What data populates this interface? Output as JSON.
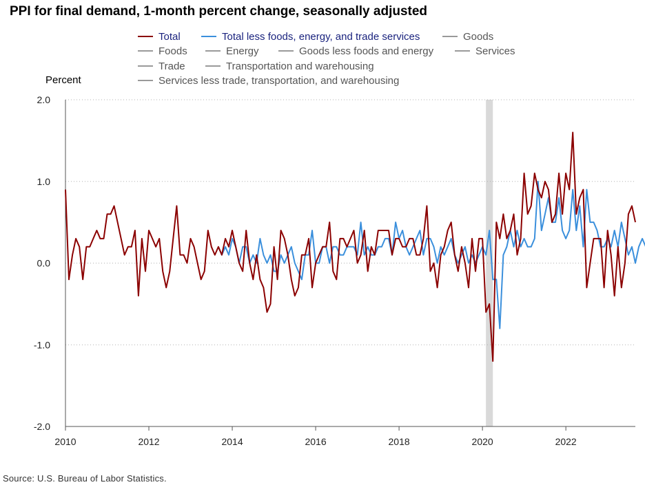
{
  "title": "PPI for final demand, 1-month percent change, seasonally adjusted",
  "source": "Source: U.S. Bureau of Labor Statistics.",
  "colors": {
    "total": "#8b0000",
    "core": "#3a8fdc",
    "inactive": "#999999",
    "recession": "#d9d9d9",
    "grid": "#b0b0b0",
    "axis": "#555555"
  },
  "legend": [
    {
      "label": "Total",
      "color": "#8b0000",
      "text_color": "#1a237e"
    },
    {
      "label": "Total less foods, energy, and trade services",
      "color": "#3a8fdc",
      "text_color": "#1a237e"
    },
    {
      "label": "Goods",
      "color": "#999999",
      "text_color": "#555555"
    },
    {
      "label": "Foods",
      "color": "#999999",
      "text_color": "#555555"
    },
    {
      "label": "Energy",
      "color": "#999999",
      "text_color": "#555555"
    },
    {
      "label": "Goods less foods and energy",
      "color": "#999999",
      "text_color": "#555555"
    },
    {
      "label": "Services",
      "color": "#999999",
      "text_color": "#555555"
    },
    {
      "label": "Trade",
      "color": "#999999",
      "text_color": "#555555"
    },
    {
      "label": "Transportation and warehousing",
      "color": "#999999",
      "text_color": "#555555"
    },
    {
      "label": "Services less trade, transportation, and warehousing",
      "color": "#999999",
      "text_color": "#555555"
    }
  ],
  "chart_data": {
    "type": "line",
    "ylabel": "Percent",
    "ylim": [
      -2.0,
      2.0
    ],
    "yticks": [
      "2.0",
      "1.0",
      "0.0",
      "-1.0",
      "-2.0"
    ],
    "ytick_values": [
      2.0,
      1.0,
      0.0,
      -1.0,
      -2.0
    ],
    "xlim": [
      "2010-01",
      "2023-09"
    ],
    "xticks": [
      "2010",
      "2012",
      "2014",
      "2016",
      "2018",
      "2020",
      "2022"
    ],
    "grid": "horizontal dotted",
    "recession_shading": [
      "2020-02",
      "2020-04"
    ],
    "series": [
      {
        "name": "Total",
        "start": "2010-01",
        "values": [
          0.9,
          -0.2,
          0.1,
          0.3,
          0.2,
          -0.2,
          0.2,
          0.2,
          0.3,
          0.4,
          0.3,
          0.3,
          0.6,
          0.6,
          0.7,
          0.5,
          0.3,
          0.1,
          0.2,
          0.2,
          0.4,
          -0.4,
          0.3,
          -0.1,
          0.4,
          0.3,
          0.2,
          0.3,
          -0.1,
          -0.3,
          -0.1,
          0.3,
          0.7,
          0.1,
          0.1,
          0.0,
          0.3,
          0.2,
          0.0,
          -0.2,
          -0.1,
          0.4,
          0.2,
          0.1,
          0.2,
          0.1,
          0.3,
          0.2,
          0.4,
          0.2,
          0.0,
          -0.1,
          0.4,
          0.0,
          -0.2,
          0.1,
          -0.2,
          -0.3,
          -0.6,
          -0.5,
          0.2,
          -0.2,
          0.4,
          0.3,
          0.1,
          -0.2,
          -0.4,
          -0.3,
          0.1,
          0.1,
          0.3,
          -0.3,
          0.0,
          0.1,
          0.2,
          0.2,
          0.5,
          -0.1,
          -0.2,
          0.3,
          0.3,
          0.2,
          0.3,
          0.4,
          0.0,
          0.1,
          0.4,
          -0.1,
          0.2,
          0.1,
          0.4,
          0.4,
          0.4,
          0.4,
          0.1,
          0.3,
          0.3,
          0.2,
          0.2,
          0.3,
          0.3,
          0.1,
          0.1,
          0.3,
          0.7,
          -0.1,
          0.0,
          -0.3,
          0.1,
          0.2,
          0.4,
          0.5,
          0.1,
          -0.1,
          0.2,
          0.0,
          -0.3,
          0.3,
          -0.1,
          0.3,
          0.3,
          -0.6,
          -0.5,
          -1.2,
          0.5,
          0.3,
          0.6,
          0.3,
          0.4,
          0.6,
          0.1,
          0.3,
          1.1,
          0.6,
          0.7,
          1.1,
          0.9,
          0.8,
          1.0,
          0.9,
          0.5,
          0.6,
          1.1,
          0.6,
          1.1,
          0.9,
          1.6,
          0.6,
          0.8,
          0.9,
          -0.3,
          0.0,
          0.3,
          0.3,
          0.3,
          -0.3,
          0.4,
          0.1,
          -0.4,
          0.2,
          -0.3,
          0.0,
          0.6,
          0.7,
          0.5
        ]
      },
      {
        "name": "Total less foods, energy, and trade services",
        "start": "2013-09",
        "values": [
          0.2,
          0.1,
          0.2,
          0.1,
          0.3,
          0.2,
          0.0,
          0.2,
          0.2,
          0.0,
          0.1,
          0.0,
          0.3,
          0.1,
          0.0,
          0.1,
          -0.1,
          -0.1,
          0.1,
          0.0,
          0.1,
          0.2,
          0.0,
          -0.1,
          -0.2,
          0.1,
          0.1,
          0.4,
          0.0,
          0.0,
          0.2,
          0.2,
          0.0,
          0.2,
          0.2,
          0.1,
          0.1,
          0.2,
          0.2,
          0.2,
          0.1,
          0.5,
          0.1,
          0.2,
          0.1,
          0.1,
          0.2,
          0.2,
          0.3,
          0.3,
          0.1,
          0.5,
          0.3,
          0.4,
          0.2,
          0.1,
          0.2,
          0.3,
          0.4,
          0.1,
          0.3,
          0.3,
          0.2,
          0.0,
          0.2,
          0.1,
          0.2,
          0.3,
          0.1,
          0.0,
          0.1,
          0.2,
          0.0,
          0.1,
          0.0,
          0.1,
          0.2,
          0.1,
          0.4,
          -0.2,
          -0.2,
          -0.8,
          0.1,
          0.2,
          0.4,
          0.2,
          0.4,
          0.2,
          0.3,
          0.2,
          0.2,
          0.3,
          1.0,
          0.4,
          0.6,
          0.8,
          0.5,
          0.5,
          0.8,
          0.4,
          0.3,
          0.4,
          0.9,
          0.4,
          0.7,
          0.2,
          0.9,
          0.5,
          0.5,
          0.4,
          0.2,
          0.2,
          0.3,
          0.2,
          0.4,
          0.2,
          0.5,
          0.3,
          0.1,
          0.2,
          0.0,
          0.2,
          0.3,
          0.2,
          0.2
        ]
      }
    ]
  }
}
